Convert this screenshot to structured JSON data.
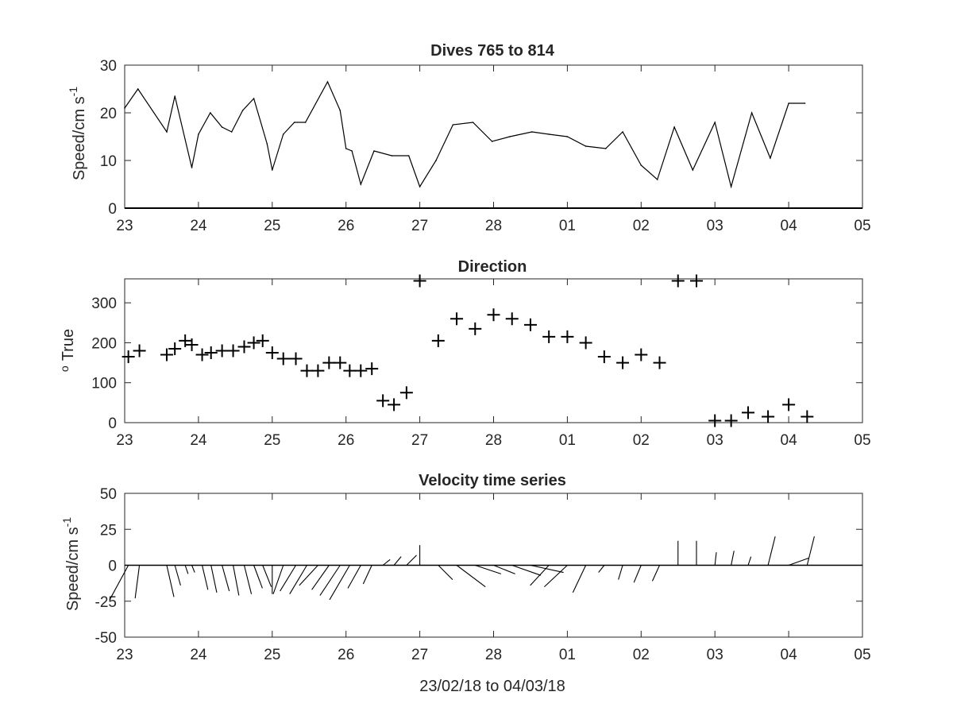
{
  "chart_data": [
    {
      "type": "line",
      "title": "Dives 765 to 814",
      "ylabel": "Speed/cm s",
      "ylabel_sup": "-1",
      "xlabel": "",
      "xlim": [
        0,
        10
      ],
      "ylim": [
        0,
        30
      ],
      "grid": false,
      "x_tick_labels": [
        "23",
        "24",
        "25",
        "26",
        "27",
        "28",
        "01",
        "02",
        "03",
        "04",
        "05"
      ],
      "y_tick_labels": [
        "0",
        "10",
        "20",
        "30"
      ],
      "y_ticks": [
        0,
        10,
        20,
        30
      ],
      "x": [
        0.0,
        0.18,
        0.57,
        0.68,
        0.91,
        1.0,
        1.16,
        1.32,
        1.45,
        1.6,
        1.75,
        1.93,
        2.0,
        2.15,
        2.3,
        2.45,
        2.75,
        2.92,
        3.0,
        3.08,
        3.2,
        3.38,
        3.62,
        3.85,
        4.0,
        4.22,
        4.45,
        4.72,
        4.98,
        5.22,
        5.52,
        5.75,
        6.0,
        6.25,
        6.52,
        6.75,
        7.0,
        7.22,
        7.45,
        7.7,
        8.0,
        8.22,
        8.5,
        8.75,
        9.0,
        9.22
      ],
      "y": [
        21,
        25,
        16,
        23.5,
        8.5,
        15.5,
        20,
        17,
        16,
        20.5,
        23,
        13.5,
        8,
        15.5,
        18,
        18,
        26.5,
        20.5,
        12.5,
        12,
        5,
        12,
        11,
        11,
        4.5,
        10,
        17.5,
        18,
        14,
        15,
        16,
        15.5,
        15,
        13,
        12.5,
        16,
        9,
        6,
        17,
        8,
        18,
        4.5,
        20,
        10.5,
        22,
        22
      ]
    },
    {
      "type": "scatter",
      "title": "Direction",
      "ylabel": "True",
      "ylabel_prefix": "o",
      "xlabel": "",
      "xlim": [
        0,
        10
      ],
      "ylim": [
        0,
        360
      ],
      "grid": false,
      "marker": "+",
      "x_tick_labels": [
        "23",
        "24",
        "25",
        "26",
        "27",
        "28",
        "01",
        "02",
        "03",
        "04",
        "05"
      ],
      "y_tick_labels": [
        "0",
        "100",
        "200",
        "300"
      ],
      "y_ticks": [
        0,
        100,
        200,
        300
      ],
      "x": [
        0.05,
        0.2,
        0.57,
        0.68,
        0.82,
        0.91,
        1.05,
        1.17,
        1.32,
        1.47,
        1.62,
        1.75,
        1.87,
        2.0,
        2.15,
        2.32,
        2.47,
        2.62,
        2.77,
        2.92,
        3.05,
        3.2,
        3.35,
        3.5,
        3.65,
        3.82,
        4.0,
        4.25,
        4.5,
        4.75,
        5.0,
        5.25,
        5.5,
        5.75,
        6.0,
        6.25,
        6.5,
        6.75,
        7.0,
        7.25,
        7.5,
        7.75,
        8.0,
        8.22,
        8.45,
        8.72,
        9.0,
        9.25
      ],
      "y": [
        165,
        180,
        170,
        185,
        205,
        195,
        170,
        175,
        180,
        180,
        190,
        200,
        205,
        175,
        160,
        160,
        130,
        130,
        150,
        150,
        130,
        130,
        135,
        55,
        45,
        75,
        355,
        205,
        260,
        235,
        270,
        260,
        245,
        215,
        215,
        200,
        165,
        150,
        170,
        150,
        355,
        355,
        5,
        5,
        25,
        15,
        45,
        15
      ]
    },
    {
      "type": "vector",
      "title": "Velocity time series",
      "ylabel": "Speed/cm s",
      "ylabel_sup": "-1",
      "xlabel": "23/02/18 to 04/03/18",
      "xlim": [
        0,
        10
      ],
      "ylim": [
        -50,
        50
      ],
      "grid": false,
      "x_tick_labels": [
        "23",
        "24",
        "25",
        "26",
        "27",
        "28",
        "01",
        "02",
        "03",
        "04",
        "05"
      ],
      "y_tick_labels": [
        "-50",
        "-25",
        "0",
        "25",
        "50"
      ],
      "y_ticks": [
        -50,
        -25,
        0,
        25,
        50
      ],
      "x": [
        0.05,
        0.2,
        0.57,
        0.68,
        0.82,
        0.91,
        1.05,
        1.17,
        1.32,
        1.47,
        1.62,
        1.75,
        1.87,
        2.0,
        2.15,
        2.32,
        2.47,
        2.62,
        2.77,
        2.92,
        3.05,
        3.2,
        3.35,
        3.5,
        3.65,
        3.82,
        4.0,
        4.25,
        4.5,
        4.75,
        5.0,
        5.25,
        5.5,
        5.75,
        6.0,
        6.25,
        6.5,
        6.75,
        7.0,
        7.25,
        7.5,
        7.75,
        8.0,
        8.22,
        8.45,
        8.72,
        9.0,
        9.25
      ],
      "u": [
        -13,
        -3,
        5,
        4,
        2,
        2,
        4,
        4,
        5,
        4,
        5,
        6,
        6,
        0,
        -7,
        -11,
        -12,
        -13,
        -12,
        -14,
        -14,
        -9,
        -6,
        5,
        5,
        7,
        0,
        10,
        20,
        18,
        15,
        20,
        23,
        -13,
        -16,
        -9,
        -4,
        -3,
        -5,
        -5,
        0,
        0,
        1,
        2,
        2,
        5,
        14,
        5
      ],
      "v": [
        -24,
        -23,
        -22,
        -14,
        -6,
        -5,
        -17,
        -19,
        -18,
        -21,
        -20,
        -16,
        -15,
        -20,
        -20,
        -18,
        -20,
        -14,
        -17,
        -21,
        -24,
        -16,
        -13,
        4,
        6,
        7,
        14,
        -10,
        -15,
        -6,
        -6,
        -7,
        -5,
        -14,
        -15,
        -19,
        -5,
        -10,
        -12,
        -11,
        17,
        17,
        9,
        10,
        6,
        20,
        5,
        20
      ]
    }
  ]
}
